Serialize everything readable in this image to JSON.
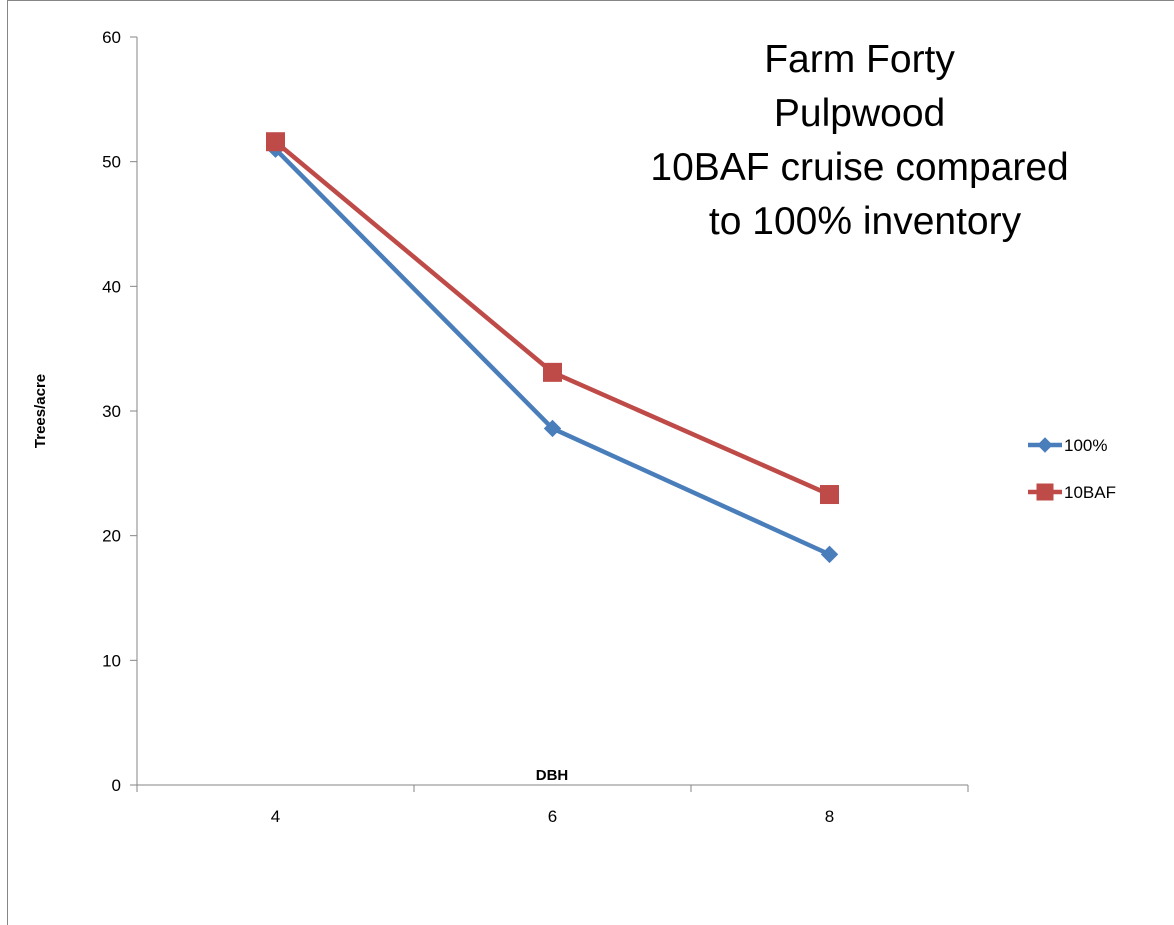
{
  "chart_data": {
    "type": "line",
    "title_lines": [
      "Farm Forty",
      "Pulpwood",
      "10BAF cruise compared",
      "to 100% inventory"
    ],
    "xlabel": "DBH",
    "ylabel": "Trees/acre",
    "categories": [
      "4",
      "6",
      "8"
    ],
    "ylim": [
      0,
      60
    ],
    "yticks": [
      "0",
      "10",
      "20",
      "30",
      "40",
      "50",
      "60"
    ],
    "grid": false,
    "legend_position": "right",
    "series": [
      {
        "name": "100%",
        "values": [
          51.0,
          28.6,
          18.5
        ],
        "color": "#4a7ebb",
        "marker": "diamond"
      },
      {
        "name": "10BAF",
        "values": [
          51.6,
          33.1,
          23.3
        ],
        "color": "#be4b48",
        "marker": "square"
      }
    ]
  }
}
